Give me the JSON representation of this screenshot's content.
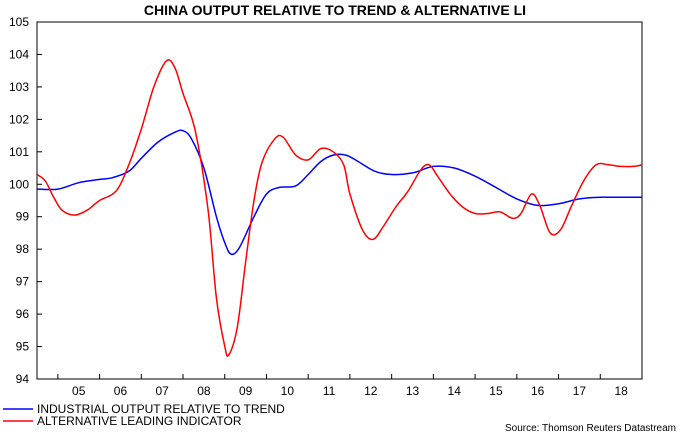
{
  "chart_data": {
    "type": "line",
    "title": "CHINA OUTPUT RELATIVE TO TREND & ALTERNATIVE LI",
    "xlabel": "",
    "ylabel": "",
    "ylim": [
      94,
      105
    ],
    "y_ticks": [
      "94",
      "95",
      "96",
      "97",
      "98",
      "99",
      "100",
      "101",
      "102",
      "103",
      "104",
      "105"
    ],
    "x_ticks": [
      "05",
      "06",
      "07",
      "08",
      "09",
      "10",
      "11",
      "12",
      "13",
      "14",
      "15",
      "16",
      "17",
      "18"
    ],
    "xlim": [
      2004.5,
      2019.0
    ],
    "grid": false,
    "legend_position": "bottom-left",
    "source": "Source: Thomson Reuters Datastream",
    "series": [
      {
        "name": "INDUSTRIAL OUTPUT RELATIVE TO TREND",
        "color": "#0000ff",
        "points": [
          [
            2004.5,
            99.85
          ],
          [
            2005.0,
            99.85
          ],
          [
            2005.5,
            100.05
          ],
          [
            2006.0,
            100.15
          ],
          [
            2006.3,
            100.2
          ],
          [
            2006.7,
            100.4
          ],
          [
            2007.0,
            100.8
          ],
          [
            2007.4,
            101.3
          ],
          [
            2007.8,
            101.6
          ],
          [
            2008.0,
            101.65
          ],
          [
            2008.2,
            101.4
          ],
          [
            2008.5,
            100.5
          ],
          [
            2008.8,
            99.0
          ],
          [
            2009.0,
            98.2
          ],
          [
            2009.15,
            97.85
          ],
          [
            2009.35,
            98.05
          ],
          [
            2009.7,
            99.0
          ],
          [
            2010.0,
            99.7
          ],
          [
            2010.3,
            99.9
          ],
          [
            2010.7,
            99.95
          ],
          [
            2011.0,
            100.3
          ],
          [
            2011.3,
            100.7
          ],
          [
            2011.6,
            100.9
          ],
          [
            2011.9,
            100.9
          ],
          [
            2012.2,
            100.7
          ],
          [
            2012.6,
            100.4
          ],
          [
            2013.0,
            100.3
          ],
          [
            2013.5,
            100.35
          ],
          [
            2014.0,
            100.55
          ],
          [
            2014.5,
            100.5
          ],
          [
            2015.0,
            100.25
          ],
          [
            2015.5,
            99.9
          ],
          [
            2016.0,
            99.55
          ],
          [
            2016.5,
            99.35
          ],
          [
            2017.0,
            99.4
          ],
          [
            2017.5,
            99.55
          ],
          [
            2018.0,
            99.6
          ],
          [
            2018.3,
            99.6
          ],
          [
            2019.0,
            99.6
          ]
        ]
      },
      {
        "name": "ALTERNATIVE LEADING INDICATOR",
        "color": "#ff0000",
        "points": [
          [
            2004.5,
            100.3
          ],
          [
            2004.7,
            100.1
          ],
          [
            2004.9,
            99.6
          ],
          [
            2005.1,
            99.2
          ],
          [
            2005.4,
            99.05
          ],
          [
            2005.7,
            99.2
          ],
          [
            2006.0,
            99.5
          ],
          [
            2006.4,
            99.8
          ],
          [
            2006.7,
            100.6
          ],
          [
            2007.0,
            101.7
          ],
          [
            2007.3,
            103.0
          ],
          [
            2007.6,
            103.8
          ],
          [
            2007.8,
            103.6
          ],
          [
            2008.0,
            102.8
          ],
          [
            2008.3,
            101.6
          ],
          [
            2008.6,
            99.2
          ],
          [
            2008.8,
            96.5
          ],
          [
            2009.0,
            95.0
          ],
          [
            2009.1,
            94.75
          ],
          [
            2009.3,
            95.6
          ],
          [
            2009.5,
            97.6
          ],
          [
            2009.7,
            99.5
          ],
          [
            2009.9,
            100.7
          ],
          [
            2010.2,
            101.4
          ],
          [
            2010.4,
            101.45
          ],
          [
            2010.7,
            100.9
          ],
          [
            2011.0,
            100.75
          ],
          [
            2011.3,
            101.1
          ],
          [
            2011.6,
            101.0
          ],
          [
            2011.85,
            100.6
          ],
          [
            2012.0,
            99.7
          ],
          [
            2012.3,
            98.6
          ],
          [
            2012.55,
            98.3
          ],
          [
            2012.8,
            98.7
          ],
          [
            2013.1,
            99.3
          ],
          [
            2013.4,
            99.8
          ],
          [
            2013.7,
            100.45
          ],
          [
            2013.9,
            100.6
          ],
          [
            2014.1,
            100.25
          ],
          [
            2014.4,
            99.7
          ],
          [
            2014.7,
            99.3
          ],
          [
            2015.0,
            99.1
          ],
          [
            2015.3,
            99.1
          ],
          [
            2015.6,
            99.15
          ],
          [
            2015.9,
            98.95
          ],
          [
            2016.1,
            99.1
          ],
          [
            2016.35,
            99.7
          ],
          [
            2016.55,
            99.35
          ],
          [
            2016.8,
            98.5
          ],
          [
            2017.05,
            98.6
          ],
          [
            2017.3,
            99.3
          ],
          [
            2017.6,
            100.1
          ],
          [
            2017.9,
            100.6
          ],
          [
            2018.2,
            100.6
          ],
          [
            2018.5,
            100.55
          ],
          [
            2018.8,
            100.55
          ],
          [
            2019.0,
            100.6
          ],
          [
            2019.3,
            100.4
          ],
          [
            2019.5,
            100.0
          ],
          [
            2019.7,
            99.8
          ]
        ]
      }
    ]
  }
}
